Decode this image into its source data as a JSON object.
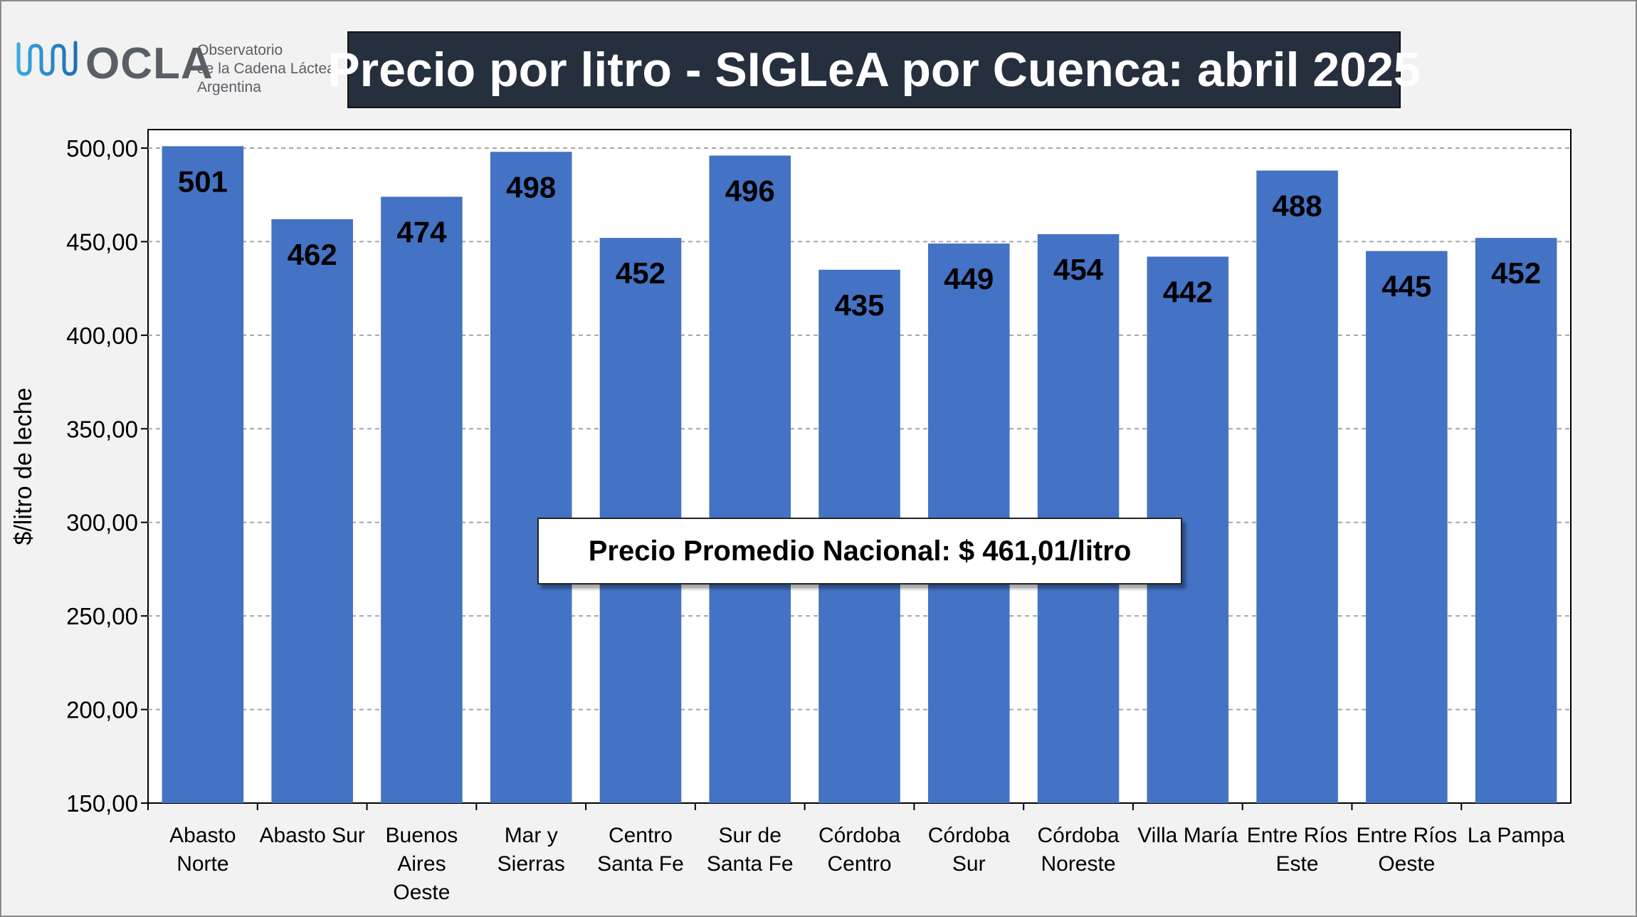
{
  "logo": {
    "name": "OCLA",
    "subtitle_lines": [
      "Observatorio",
      "de la Cadena Láctea",
      "Argentina"
    ]
  },
  "chart_data": {
    "type": "bar",
    "title": "Precio por litro - SIGLeA por Cuenca: abril 2025",
    "ylabel": "$/litro de leche",
    "xlabel": "",
    "ylim": [
      150,
      500
    ],
    "yticks": [
      "500,00",
      "450,00",
      "400,00",
      "350,00",
      "300,00",
      "250,00",
      "200,00",
      "150,00"
    ],
    "ytick_values": [
      500,
      450,
      400,
      350,
      300,
      250,
      200,
      150
    ],
    "grid": true,
    "bar_color": "#4472c4",
    "categories": [
      [
        "Abasto",
        "Norte"
      ],
      [
        "Abasto Sur"
      ],
      [
        "Buenos",
        "Aires",
        "Oeste"
      ],
      [
        "Mar y",
        "Sierras"
      ],
      [
        "Centro",
        "Santa Fe"
      ],
      [
        "Sur de",
        "Santa Fe"
      ],
      [
        "Córdoba",
        "Centro"
      ],
      [
        "Córdoba",
        "Sur"
      ],
      [
        "Córdoba",
        "Noreste"
      ],
      [
        "Villa María"
      ],
      [
        "Entre Ríos",
        "Este"
      ],
      [
        "Entre Ríos",
        "Oeste"
      ],
      [
        "La Pampa"
      ]
    ],
    "values": [
      501,
      462,
      474,
      498,
      452,
      496,
      435,
      449,
      454,
      442,
      488,
      445,
      452
    ],
    "value_labels": [
      "501",
      "462",
      "474",
      "498",
      "452",
      "496",
      "435",
      "449",
      "454",
      "442",
      "488",
      "445",
      "452"
    ],
    "annotation": "Precio Promedio Nacional: $ 461,01/litro"
  }
}
